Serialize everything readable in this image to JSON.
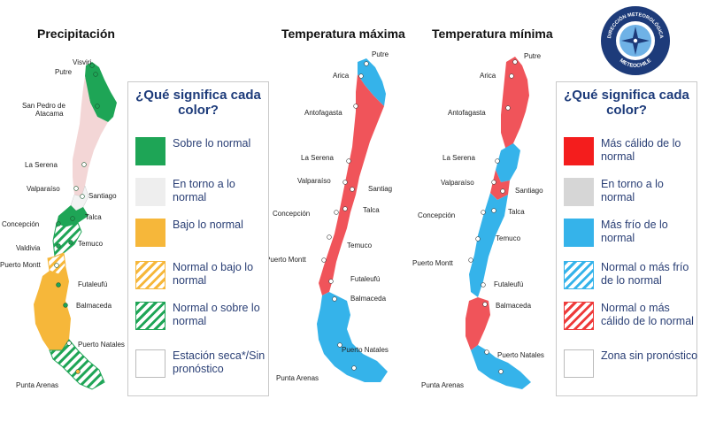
{
  "titles": {
    "precipitation": "Precipitación",
    "tmax": "Temperatura máxima",
    "tmin": "Temperatura mínima"
  },
  "logo": {
    "top_text": "DIRECCIÓN METEOROLÓGICA",
    "bottom_text": "METEOCHILE",
    "color": "#1d3b7a"
  },
  "cities": {
    "map1": [
      "Visviri",
      "Putre",
      "San Pedro de",
      "Atacama",
      "La Serena",
      "Valparaíso",
      "Santiago",
      "Concepción",
      "Talca",
      "Valdivia",
      "Temuco",
      "Puerto Montt",
      "Futaleufú",
      "Balmaceda",
      "Puerto Natales",
      "Punta Arenas"
    ],
    "map2": [
      "Putre",
      "Arica",
      "Antofagasta",
      "La Serena",
      "Valparaíso",
      "Santiag",
      "Concepción",
      "Talca",
      "Temuco",
      "Puerto Montt",
      "Futaleufú",
      "Balmaceda",
      "Puerto Natales",
      "Punta Arenas"
    ],
    "map3": [
      "Putre",
      "Arica",
      "Antofagasta",
      "La Serena",
      "Valparaíso",
      "Santiago",
      "Concepción",
      "Talca",
      "Temuco",
      "Puerto Montt",
      "Futaleufú",
      "Balmaceda",
      "Puerto Natales",
      "Punta Arenas"
    ]
  },
  "legend_precip": {
    "title": "¿Qué significa cada color?",
    "items": [
      {
        "label": "Sobre lo normal",
        "color": "#1ea556",
        "style": "solid"
      },
      {
        "label": "En torno a lo normal",
        "color": "#eeeeee",
        "style": "solid"
      },
      {
        "label": "Bajo lo normal",
        "color": "#f6b73a",
        "style": "solid"
      },
      {
        "label": "Normal o bajo lo normal",
        "color": "#f6b73a",
        "style": "hatched"
      },
      {
        "label": "Normal o sobre lo normal",
        "color": "#1ea556",
        "style": "hatched"
      },
      {
        "label": "Estación seca*/Sin pronóstico",
        "color": "#ffffff",
        "style": "blank"
      }
    ]
  },
  "legend_temp": {
    "title": "¿Qué significa cada color?",
    "items": [
      {
        "label": "Más cálido de lo normal",
        "color": "#f41d1d",
        "style": "solid"
      },
      {
        "label": "En torno a lo normal",
        "color": "#d6d6d6",
        "style": "solid"
      },
      {
        "label": "Más frío de lo normal",
        "color": "#35b3ea",
        "style": "solid"
      },
      {
        "label": "Normal o más frío de lo normal",
        "color": "#35b3ea",
        "style": "hatched"
      },
      {
        "label": "Normal o más cálido de lo normal",
        "color": "#ee3a3a",
        "style": "hatched"
      },
      {
        "label": "Zona sin pronóstico",
        "color": "#ffffff",
        "style": "blank"
      }
    ]
  }
}
